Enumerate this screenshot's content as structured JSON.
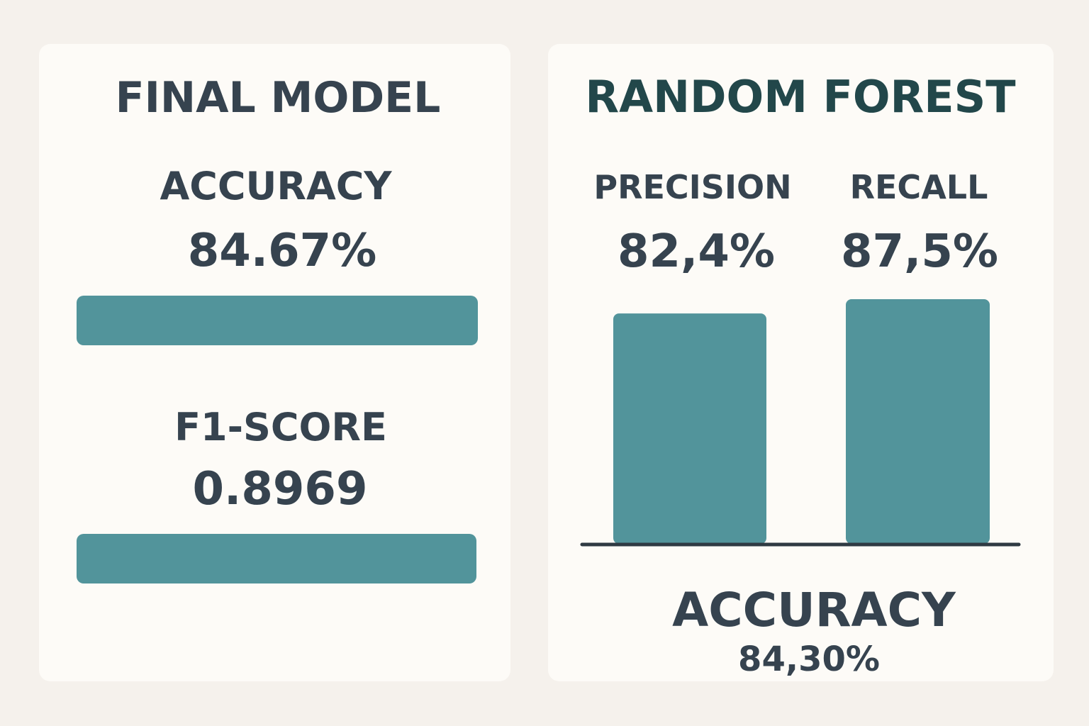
{
  "colors": {
    "bar": "#52949b",
    "text": "#36434f",
    "heading_right": "#22474a",
    "axis": "#2f3a43"
  },
  "final_model": {
    "title": "FINAL MODEL",
    "accuracy_label": "ACCURACY",
    "accuracy_value": "84.67%",
    "f1_label": "F1-SCORE",
    "f1_value": "0.8969"
  },
  "random_forest": {
    "title": "RANDOM FOREST",
    "accuracy_label": "ACCURACY",
    "accuracy_value": "84,30%"
  },
  "chart_data": [
    {
      "type": "bar",
      "orientation": "horizontal",
      "title": "FINAL MODEL",
      "categories": [
        "ACCURACY",
        "F1-SCORE"
      ],
      "values": [
        84.67,
        0.8969
      ],
      "value_labels": [
        "84.67%",
        "0.8969"
      ],
      "grid": false
    },
    {
      "type": "bar",
      "title": "RANDOM FOREST",
      "categories": [
        "PRECISION",
        "RECALL"
      ],
      "values": [
        82.4,
        87.5
      ],
      "value_labels": [
        "82,4%",
        "87,5%"
      ],
      "grid": false
    }
  ]
}
